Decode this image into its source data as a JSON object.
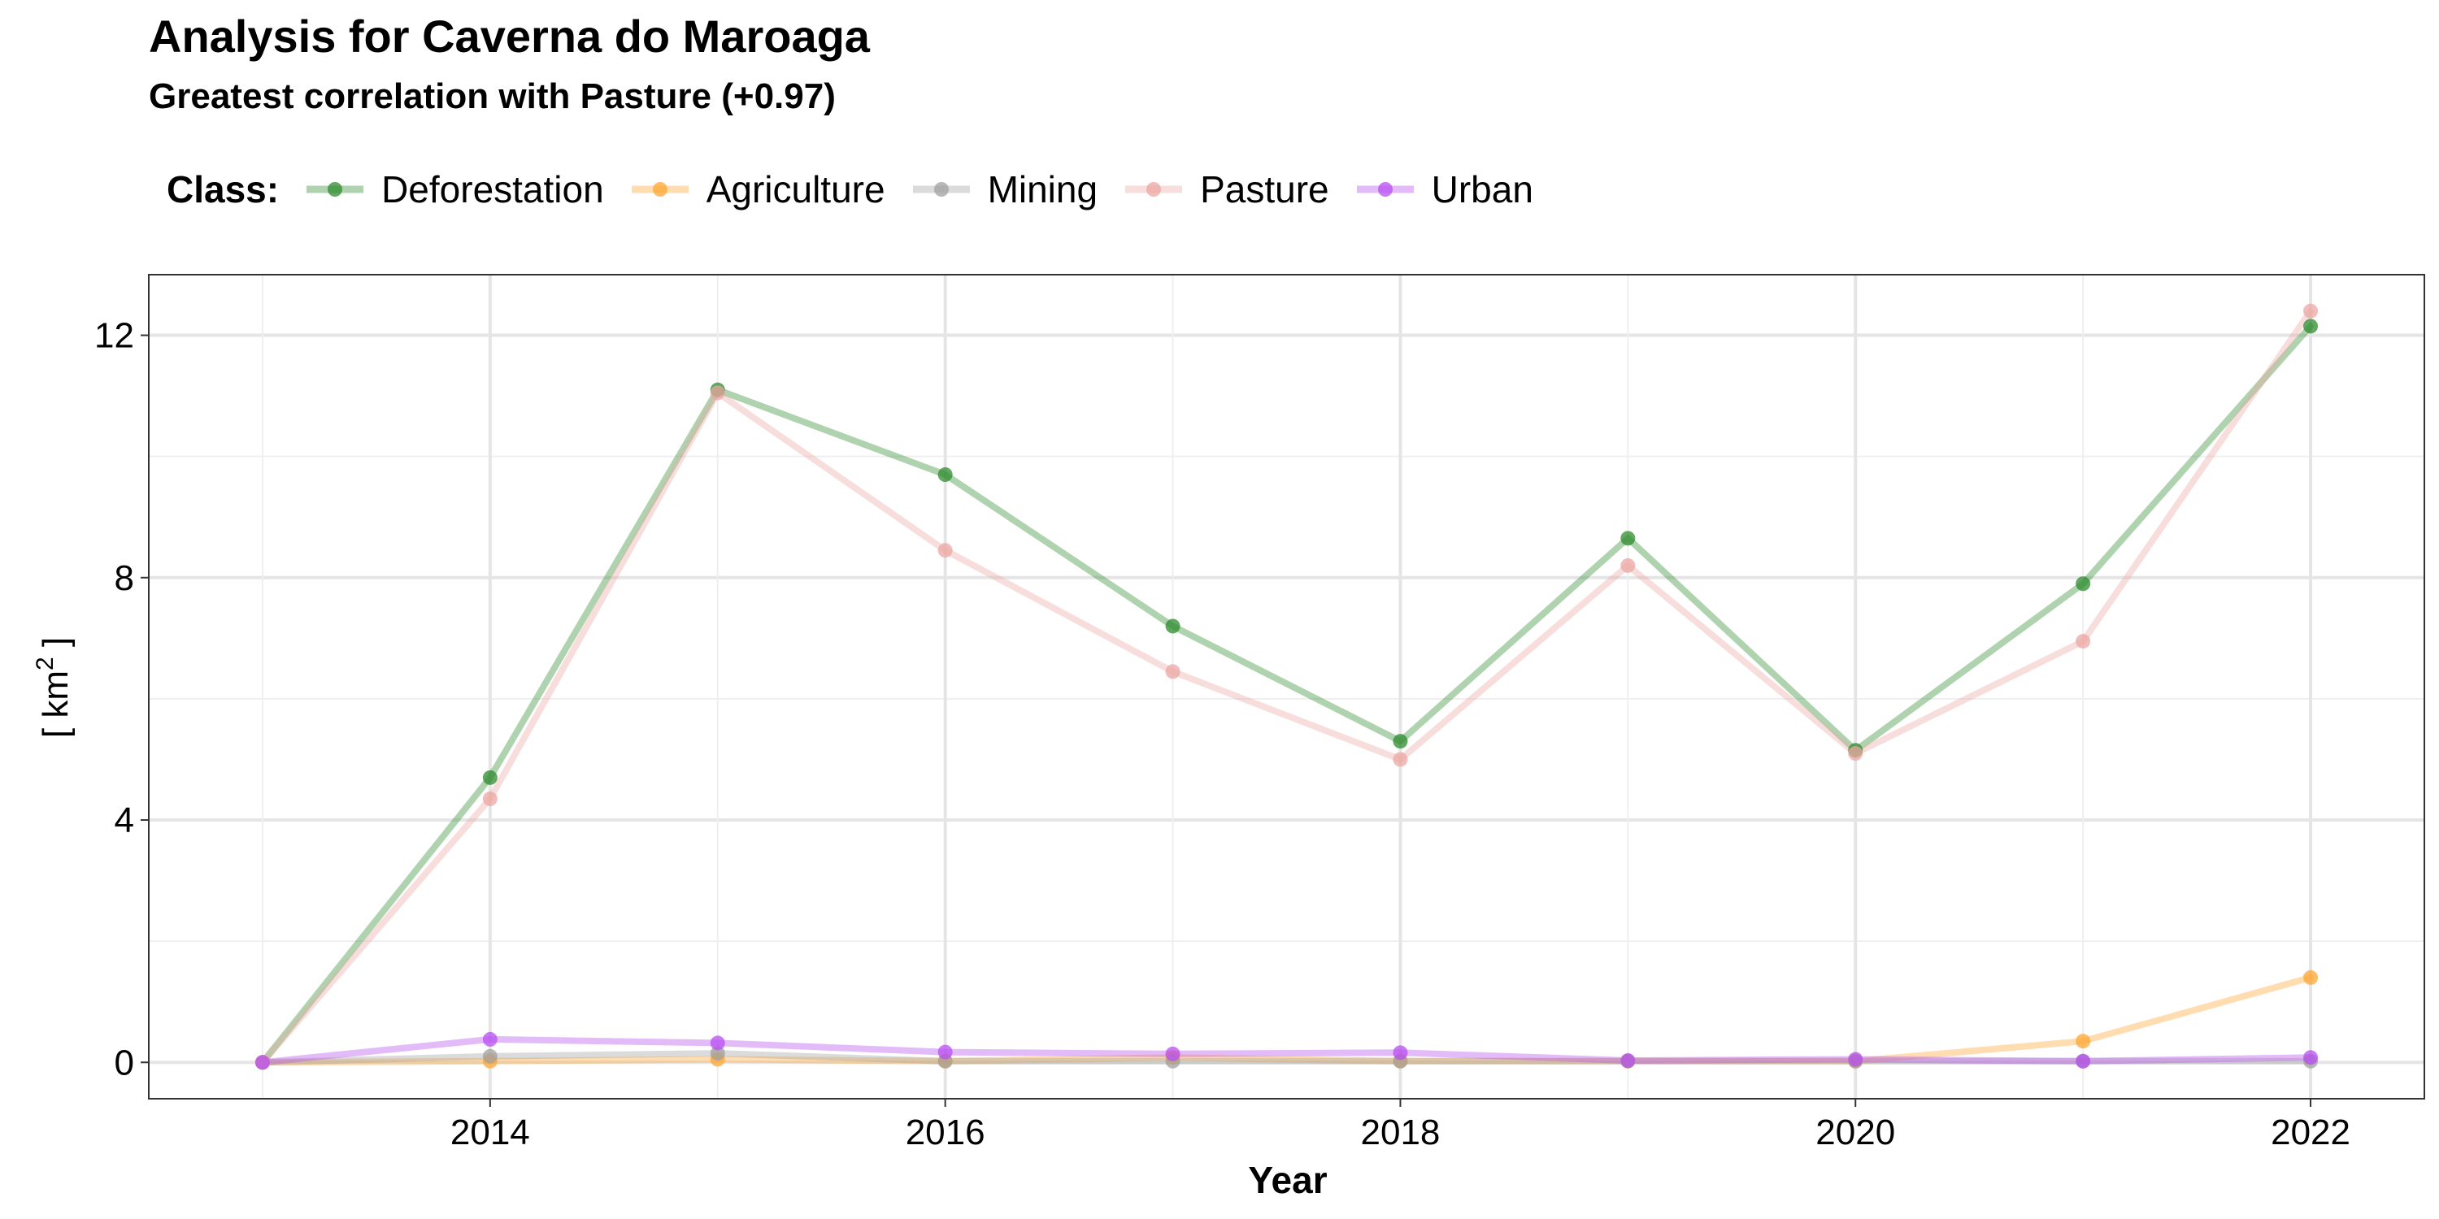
{
  "chart_data": {
    "type": "line",
    "title": "Analysis for Caverna do Maroaga",
    "subtitle": "Greatest correlation with Pasture (+0.97)",
    "xlabel": "Year",
    "ylabel": "[ km² ]",
    "ylabel_base": "[ km",
    "ylabel_sup": "2",
    "ylabel_end": " ]",
    "xlim": [
      2012.5,
      2022.5
    ],
    "ylim": [
      -0.6,
      13.0
    ],
    "xticks": [
      2014,
      2016,
      2018,
      2020,
      2022
    ],
    "yticks": [
      0,
      4,
      8,
      12
    ],
    "grid": true,
    "legend_title": "Class:",
    "legend_position": "top",
    "x": [
      2013,
      2014,
      2015,
      2016,
      2017,
      2018,
      2019,
      2020,
      2021,
      2022
    ],
    "series": [
      {
        "name": "Deforestation",
        "color": "#2E8B2E",
        "values": [
          0.0,
          4.7,
          11.1,
          9.7,
          7.2,
          5.3,
          8.65,
          5.15,
          7.9,
          12.15
        ]
      },
      {
        "name": "Agriculture",
        "color": "#FFA533",
        "values": [
          0.0,
          0.02,
          0.05,
          0.02,
          0.08,
          0.02,
          0.02,
          0.02,
          0.35,
          1.4
        ]
      },
      {
        "name": "Mining",
        "color": "#A0A0A0",
        "values": [
          0.0,
          0.1,
          0.15,
          0.02,
          0.02,
          0.02,
          0.02,
          0.02,
          0.02,
          0.02
        ]
      },
      {
        "name": "Pasture",
        "color": "#EBA7A3",
        "values": [
          0.0,
          4.35,
          11.05,
          8.45,
          6.45,
          5.0,
          8.2,
          5.1,
          6.95,
          12.4
        ]
      },
      {
        "name": "Urban",
        "color": "#B84DF0",
        "values": [
          0.0,
          0.38,
          0.32,
          0.17,
          0.14,
          0.16,
          0.03,
          0.05,
          0.02,
          0.08
        ]
      }
    ]
  }
}
